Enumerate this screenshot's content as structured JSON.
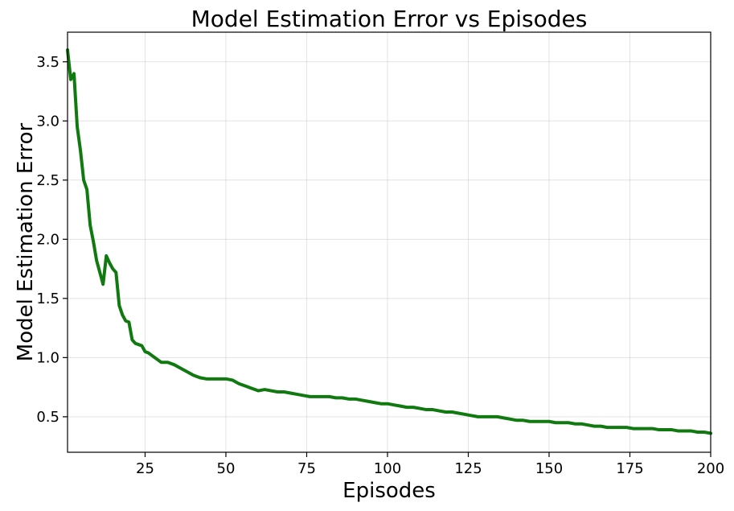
{
  "chart_data": {
    "type": "line",
    "title": "Model Estimation Error vs Episodes",
    "xlabel": "Episodes",
    "ylabel": "Model Estimation Error",
    "xlim": [
      1,
      200
    ],
    "ylim": [
      0.2,
      3.75
    ],
    "xticks": [
      25,
      50,
      75,
      100,
      125,
      150,
      175,
      200
    ],
    "yticks": [
      0.5,
      1.0,
      1.5,
      2.0,
      2.5,
      3.0,
      3.5
    ],
    "ytick_labels": [
      "0.5",
      "1.0",
      "1.5",
      "2.0",
      "2.5",
      "3.0",
      "3.5"
    ],
    "grid": true,
    "line_color": "#107a10",
    "series": [
      {
        "x": [
          1,
          2,
          3,
          4,
          5,
          6,
          7,
          8,
          9,
          10,
          11,
          12,
          13,
          14,
          15,
          16,
          17,
          18,
          19,
          20,
          21,
          22,
          23,
          24,
          25,
          26,
          27,
          28,
          29,
          30,
          32,
          34,
          36,
          38,
          40,
          42,
          44,
          46,
          48,
          50,
          52,
          54,
          56,
          58,
          60,
          62,
          64,
          66,
          68,
          70,
          72,
          74,
          76,
          78,
          80,
          82,
          84,
          86,
          88,
          90,
          92,
          94,
          96,
          98,
          100,
          102,
          104,
          106,
          108,
          110,
          112,
          114,
          116,
          118,
          120,
          122,
          124,
          126,
          128,
          130,
          132,
          134,
          136,
          138,
          140,
          142,
          144,
          146,
          148,
          150,
          152,
          154,
          156,
          158,
          160,
          162,
          164,
          166,
          168,
          170,
          172,
          174,
          176,
          178,
          180,
          182,
          184,
          186,
          188,
          190,
          192,
          194,
          196,
          198,
          200
        ],
        "y": [
          3.6,
          3.35,
          3.4,
          2.95,
          2.75,
          2.5,
          2.42,
          2.12,
          1.98,
          1.82,
          1.72,
          1.62,
          1.86,
          1.8,
          1.75,
          1.72,
          1.44,
          1.36,
          1.31,
          1.3,
          1.15,
          1.12,
          1.11,
          1.1,
          1.05,
          1.04,
          1.02,
          1.0,
          0.98,
          0.96,
          0.96,
          0.94,
          0.91,
          0.88,
          0.85,
          0.83,
          0.82,
          0.82,
          0.82,
          0.82,
          0.81,
          0.78,
          0.76,
          0.74,
          0.72,
          0.73,
          0.72,
          0.71,
          0.71,
          0.7,
          0.69,
          0.68,
          0.67,
          0.67,
          0.67,
          0.67,
          0.66,
          0.66,
          0.65,
          0.65,
          0.64,
          0.63,
          0.62,
          0.61,
          0.61,
          0.6,
          0.59,
          0.58,
          0.58,
          0.57,
          0.56,
          0.56,
          0.55,
          0.54,
          0.54,
          0.53,
          0.52,
          0.51,
          0.5,
          0.5,
          0.5,
          0.5,
          0.49,
          0.48,
          0.47,
          0.47,
          0.46,
          0.46,
          0.46,
          0.46,
          0.45,
          0.45,
          0.45,
          0.44,
          0.44,
          0.43,
          0.42,
          0.42,
          0.41,
          0.41,
          0.41,
          0.41,
          0.4,
          0.4,
          0.4,
          0.4,
          0.39,
          0.39,
          0.39,
          0.38,
          0.38,
          0.38,
          0.37,
          0.37,
          0.36
        ]
      }
    ]
  }
}
